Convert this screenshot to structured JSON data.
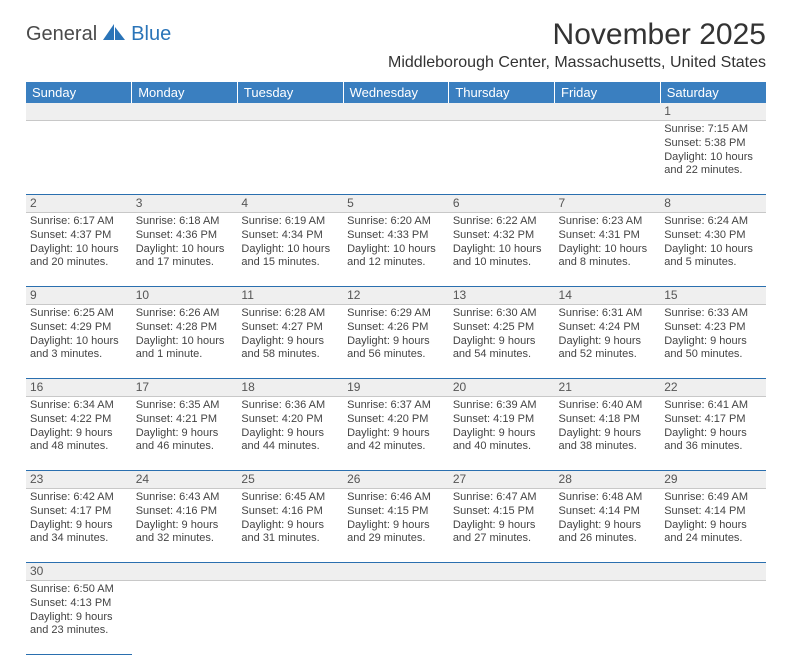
{
  "logo": {
    "part1": "General",
    "part2": "Blue"
  },
  "title": "November 2025",
  "location": "Middleborough Center, Massachusetts, United States",
  "weekdays": [
    "Sunday",
    "Monday",
    "Tuesday",
    "Wednesday",
    "Thursday",
    "Friday",
    "Saturday"
  ],
  "colors": {
    "header_bg": "#3a7fc0",
    "header_text": "#ffffff",
    "daynum_bg": "#efefef",
    "row_border": "#2a6faf",
    "logo_blue": "#2a74b8",
    "text": "#333333"
  },
  "fonts": {
    "title_size": 30,
    "location_size": 16,
    "weekday_size": 13,
    "cell_size": 11,
    "daynum_size": 12
  },
  "weeks": [
    [
      null,
      null,
      null,
      null,
      null,
      null,
      {
        "n": "1",
        "sr": "Sunrise: 7:15 AM",
        "ss": "Sunset: 5:38 PM",
        "d1": "Daylight: 10 hours",
        "d2": "and 22 minutes."
      }
    ],
    [
      {
        "n": "2",
        "sr": "Sunrise: 6:17 AM",
        "ss": "Sunset: 4:37 PM",
        "d1": "Daylight: 10 hours",
        "d2": "and 20 minutes."
      },
      {
        "n": "3",
        "sr": "Sunrise: 6:18 AM",
        "ss": "Sunset: 4:36 PM",
        "d1": "Daylight: 10 hours",
        "d2": "and 17 minutes."
      },
      {
        "n": "4",
        "sr": "Sunrise: 6:19 AM",
        "ss": "Sunset: 4:34 PM",
        "d1": "Daylight: 10 hours",
        "d2": "and 15 minutes."
      },
      {
        "n": "5",
        "sr": "Sunrise: 6:20 AM",
        "ss": "Sunset: 4:33 PM",
        "d1": "Daylight: 10 hours",
        "d2": "and 12 minutes."
      },
      {
        "n": "6",
        "sr": "Sunrise: 6:22 AM",
        "ss": "Sunset: 4:32 PM",
        "d1": "Daylight: 10 hours",
        "d2": "and 10 minutes."
      },
      {
        "n": "7",
        "sr": "Sunrise: 6:23 AM",
        "ss": "Sunset: 4:31 PM",
        "d1": "Daylight: 10 hours",
        "d2": "and 8 minutes."
      },
      {
        "n": "8",
        "sr": "Sunrise: 6:24 AM",
        "ss": "Sunset: 4:30 PM",
        "d1": "Daylight: 10 hours",
        "d2": "and 5 minutes."
      }
    ],
    [
      {
        "n": "9",
        "sr": "Sunrise: 6:25 AM",
        "ss": "Sunset: 4:29 PM",
        "d1": "Daylight: 10 hours",
        "d2": "and 3 minutes."
      },
      {
        "n": "10",
        "sr": "Sunrise: 6:26 AM",
        "ss": "Sunset: 4:28 PM",
        "d1": "Daylight: 10 hours",
        "d2": "and 1 minute."
      },
      {
        "n": "11",
        "sr": "Sunrise: 6:28 AM",
        "ss": "Sunset: 4:27 PM",
        "d1": "Daylight: 9 hours",
        "d2": "and 58 minutes."
      },
      {
        "n": "12",
        "sr": "Sunrise: 6:29 AM",
        "ss": "Sunset: 4:26 PM",
        "d1": "Daylight: 9 hours",
        "d2": "and 56 minutes."
      },
      {
        "n": "13",
        "sr": "Sunrise: 6:30 AM",
        "ss": "Sunset: 4:25 PM",
        "d1": "Daylight: 9 hours",
        "d2": "and 54 minutes."
      },
      {
        "n": "14",
        "sr": "Sunrise: 6:31 AM",
        "ss": "Sunset: 4:24 PM",
        "d1": "Daylight: 9 hours",
        "d2": "and 52 minutes."
      },
      {
        "n": "15",
        "sr": "Sunrise: 6:33 AM",
        "ss": "Sunset: 4:23 PM",
        "d1": "Daylight: 9 hours",
        "d2": "and 50 minutes."
      }
    ],
    [
      {
        "n": "16",
        "sr": "Sunrise: 6:34 AM",
        "ss": "Sunset: 4:22 PM",
        "d1": "Daylight: 9 hours",
        "d2": "and 48 minutes."
      },
      {
        "n": "17",
        "sr": "Sunrise: 6:35 AM",
        "ss": "Sunset: 4:21 PM",
        "d1": "Daylight: 9 hours",
        "d2": "and 46 minutes."
      },
      {
        "n": "18",
        "sr": "Sunrise: 6:36 AM",
        "ss": "Sunset: 4:20 PM",
        "d1": "Daylight: 9 hours",
        "d2": "and 44 minutes."
      },
      {
        "n": "19",
        "sr": "Sunrise: 6:37 AM",
        "ss": "Sunset: 4:20 PM",
        "d1": "Daylight: 9 hours",
        "d2": "and 42 minutes."
      },
      {
        "n": "20",
        "sr": "Sunrise: 6:39 AM",
        "ss": "Sunset: 4:19 PM",
        "d1": "Daylight: 9 hours",
        "d2": "and 40 minutes."
      },
      {
        "n": "21",
        "sr": "Sunrise: 6:40 AM",
        "ss": "Sunset: 4:18 PM",
        "d1": "Daylight: 9 hours",
        "d2": "and 38 minutes."
      },
      {
        "n": "22",
        "sr": "Sunrise: 6:41 AM",
        "ss": "Sunset: 4:17 PM",
        "d1": "Daylight: 9 hours",
        "d2": "and 36 minutes."
      }
    ],
    [
      {
        "n": "23",
        "sr": "Sunrise: 6:42 AM",
        "ss": "Sunset: 4:17 PM",
        "d1": "Daylight: 9 hours",
        "d2": "and 34 minutes."
      },
      {
        "n": "24",
        "sr": "Sunrise: 6:43 AM",
        "ss": "Sunset: 4:16 PM",
        "d1": "Daylight: 9 hours",
        "d2": "and 32 minutes."
      },
      {
        "n": "25",
        "sr": "Sunrise: 6:45 AM",
        "ss": "Sunset: 4:16 PM",
        "d1": "Daylight: 9 hours",
        "d2": "and 31 minutes."
      },
      {
        "n": "26",
        "sr": "Sunrise: 6:46 AM",
        "ss": "Sunset: 4:15 PM",
        "d1": "Daylight: 9 hours",
        "d2": "and 29 minutes."
      },
      {
        "n": "27",
        "sr": "Sunrise: 6:47 AM",
        "ss": "Sunset: 4:15 PM",
        "d1": "Daylight: 9 hours",
        "d2": "and 27 minutes."
      },
      {
        "n": "28",
        "sr": "Sunrise: 6:48 AM",
        "ss": "Sunset: 4:14 PM",
        "d1": "Daylight: 9 hours",
        "d2": "and 26 minutes."
      },
      {
        "n": "29",
        "sr": "Sunrise: 6:49 AM",
        "ss": "Sunset: 4:14 PM",
        "d1": "Daylight: 9 hours",
        "d2": "and 24 minutes."
      }
    ],
    [
      {
        "n": "30",
        "sr": "Sunrise: 6:50 AM",
        "ss": "Sunset: 4:13 PM",
        "d1": "Daylight: 9 hours",
        "d2": "and 23 minutes."
      },
      null,
      null,
      null,
      null,
      null,
      null
    ]
  ]
}
